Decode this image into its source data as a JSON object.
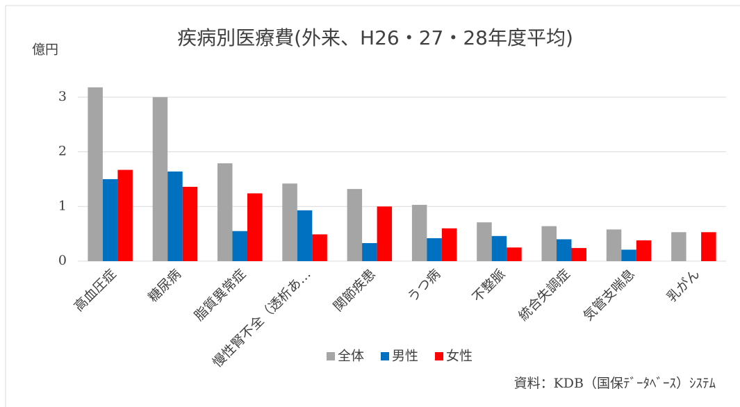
{
  "chart_data": {
    "type": "bar",
    "title": "疾病別医療費(外来、H26・27・28年度平均)",
    "y_label": "億円",
    "source": "資料：KDB（国保ﾃﾞｰﾀﾍﾞｰｽ）ｼｽﾃﾑ",
    "categories": [
      "高血圧症",
      "糖尿病",
      "脂質異常症",
      "慢性腎不全（透析あ…",
      "関節疾患",
      "うつ病",
      "不整脈",
      "統合失調症",
      "気管支喘息",
      "乳がん"
    ],
    "series": [
      {
        "name": "全体",
        "color": "#a5a5a5",
        "values": [
          3.18,
          3.0,
          1.79,
          1.42,
          1.32,
          1.03,
          0.71,
          0.64,
          0.58,
          0.53
        ]
      },
      {
        "name": "男性",
        "color": "#0070c0",
        "values": [
          1.5,
          1.64,
          0.55,
          0.93,
          0.33,
          0.42,
          0.46,
          0.4,
          0.21,
          0
        ]
      },
      {
        "name": "女性",
        "color": "#ff0000",
        "values": [
          1.67,
          1.36,
          1.24,
          0.49,
          1.0,
          0.6,
          0.25,
          0.24,
          0.38,
          0.53
        ]
      }
    ],
    "ylim": [
      0,
      3.5
    ],
    "yticks": [
      0,
      1,
      2,
      3
    ],
    "grid": true,
    "legend": "bottom"
  }
}
